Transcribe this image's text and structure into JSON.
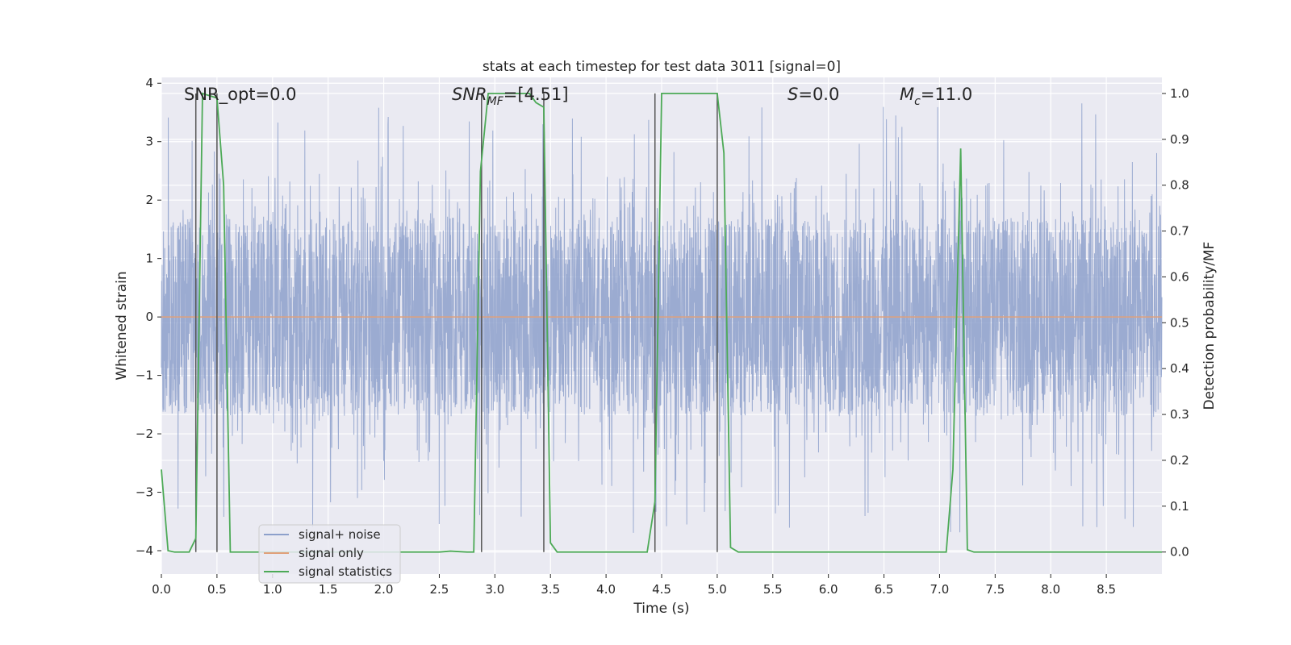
{
  "chart_data": {
    "type": "line",
    "title": "stats at each timestep for test data 3011 [signal=0]",
    "xlabel": "Time (s)",
    "ylabel": "Whitened strain",
    "y2label": "Detection probability/MF",
    "xlim": [
      0,
      9.0
    ],
    "ylim": [
      -4.4,
      4.1
    ],
    "y2lim": [
      -0.048,
      1.035
    ],
    "x_ticks": [
      0.0,
      0.5,
      1.0,
      1.5,
      2.0,
      2.5,
      3.0,
      3.5,
      4.0,
      4.5,
      5.0,
      5.5,
      6.0,
      6.5,
      7.0,
      7.5,
      8.0,
      8.5
    ],
    "y_ticks": [
      4,
      3,
      2,
      1,
      0,
      -1,
      -2,
      -3,
      -4
    ],
    "y2_ticks": [
      1.0,
      0.9,
      0.8,
      0.7,
      0.6,
      0.5,
      0.4,
      0.3,
      0.2,
      0.1,
      0.0
    ],
    "grid": true,
    "legend_position": "lower-left",
    "annotations": {
      "snr_opt": "SNR_opt=0.0",
      "snr_mf_prefix": "SNR",
      "snr_mf_sub": "MF",
      "snr_mf_value": "=[4.51]",
      "s_prefix": "S",
      "s_value": "=0.0",
      "mc_prefix": "M",
      "mc_sub": "c",
      "mc_value": "=11.0"
    },
    "vertical_markers": [
      0.31,
      0.5,
      2.88,
      3.44,
      4.44,
      5.0
    ],
    "series": [
      {
        "name": "signal+ noise",
        "color": "#8da0cb",
        "axis": "left",
        "description_values": "noise roughly within [-4, 4]",
        "amplitude_core": 1.7,
        "amplitude_peak": 3.7
      },
      {
        "name": "signal only",
        "color": "#e0a07a",
        "axis": "left",
        "x": [
          0.0,
          9.0
        ],
        "y": [
          0.0,
          0.0
        ]
      },
      {
        "name": "signal statistics",
        "color": "#4daa57",
        "axis": "right",
        "x": [
          0.0,
          0.06,
          0.12,
          0.19,
          0.25,
          0.31,
          0.37,
          0.5,
          0.56,
          0.62,
          0.69,
          0.75,
          1.0,
          1.5,
          2.0,
          2.5,
          2.6,
          2.75,
          2.81,
          2.87,
          2.94,
          3.0,
          3.06,
          3.12,
          3.19,
          3.25,
          3.31,
          3.37,
          3.44,
          3.5,
          3.56,
          3.62,
          3.75,
          4.0,
          4.25,
          4.37,
          4.44,
          4.5,
          4.62,
          4.75,
          4.87,
          5.0,
          5.06,
          5.12,
          5.19,
          5.25,
          5.5,
          6.0,
          6.5,
          6.87,
          7.06,
          7.12,
          7.19,
          7.25,
          7.31,
          7.5,
          8.0,
          8.5,
          9.0
        ],
        "y": [
          0.18,
          0.003,
          0.0,
          0.0,
          0.0,
          0.03,
          1.0,
          0.99,
          0.8,
          0.0,
          0.0,
          0.0,
          0.0,
          0.0,
          0.0,
          0.0,
          0.002,
          0.0,
          0.0,
          0.83,
          1.0,
          1.0,
          1.0,
          1.0,
          1.0,
          1.0,
          1.0,
          0.98,
          0.97,
          0.02,
          0.0,
          0.0,
          0.0,
          0.0,
          0.0,
          0.0,
          0.11,
          1.0,
          1.0,
          1.0,
          1.0,
          1.0,
          0.87,
          0.01,
          0.0,
          0.0,
          0.0,
          0.0,
          0.0,
          0.0,
          0.0,
          0.18,
          0.88,
          0.005,
          0.0,
          0.0,
          0.0,
          0.0,
          0.0
        ]
      }
    ]
  }
}
